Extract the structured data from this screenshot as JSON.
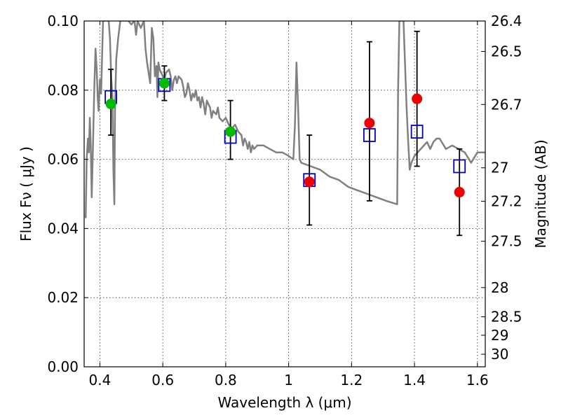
{
  "chart_data": {
    "type": "scatter",
    "xlabel": "Wavelength  λ (μm)",
    "ylabel": "Flux  Fν  ( μJy )",
    "y2label": "Magnitude (AB)",
    "xlim": [
      0.35,
      1.625
    ],
    "ylim": [
      0.0,
      0.1
    ],
    "grid": true,
    "x_ticks": [
      {
        "value": 0.4,
        "label": "0.4"
      },
      {
        "value": 0.6,
        "label": "0.6"
      },
      {
        "value": 0.8,
        "label": "0.8"
      },
      {
        "value": 1.0,
        "label": "1"
      },
      {
        "value": 1.2,
        "label": "1.2"
      },
      {
        "value": 1.4,
        "label": "1.4"
      },
      {
        "value": 1.6,
        "label": "1.6"
      }
    ],
    "y_ticks": [
      {
        "value": 0.0,
        "label": "0.00"
      },
      {
        "value": 0.02,
        "label": "0.02"
      },
      {
        "value": 0.04,
        "label": "0.04"
      },
      {
        "value": 0.06,
        "label": "0.06"
      },
      {
        "value": 0.08,
        "label": "0.08"
      },
      {
        "value": 0.1,
        "label": "0.10"
      }
    ],
    "y2_ticks": [
      {
        "value": 26.4,
        "label": "26.4"
      },
      {
        "value": 26.5,
        "label": "26.5"
      },
      {
        "value": 26.7,
        "label": "26.7"
      },
      {
        "value": 27.0,
        "label": "27"
      },
      {
        "value": 27.2,
        "label": "27.2"
      },
      {
        "value": 27.5,
        "label": "27.5"
      },
      {
        "value": 28.0,
        "label": "28"
      },
      {
        "value": 28.5,
        "label": "28.5"
      },
      {
        "value": 29.0,
        "label": "29"
      },
      {
        "value": 30.0,
        "label": "30"
      }
    ],
    "series": [
      {
        "kind": "line",
        "color": "#808080",
        "points": [
          [
            0.355,
            0.043
          ],
          [
            0.358,
            0.06
          ],
          [
            0.362,
            0.066
          ],
          [
            0.365,
            0.062
          ],
          [
            0.368,
            0.072
          ],
          [
            0.371,
            0.064
          ],
          [
            0.374,
            0.049
          ],
          [
            0.378,
            0.064
          ],
          [
            0.382,
            0.08
          ],
          [
            0.386,
            0.092
          ],
          [
            0.39,
            0.086
          ],
          [
            0.393,
            0.078
          ],
          [
            0.396,
            0.074
          ],
          [
            0.4,
            0.083
          ],
          [
            0.404,
            0.079
          ],
          [
            0.41,
            0.1
          ],
          [
            0.415,
            0.1001
          ],
          [
            0.425,
            0.1001
          ],
          [
            0.428,
            0.1
          ],
          [
            0.432,
            0.095
          ],
          [
            0.436,
            0.084
          ],
          [
            0.44,
            0.078
          ],
          [
            0.443,
            0.057
          ],
          [
            0.446,
            0.047
          ],
          [
            0.448,
            0.075
          ],
          [
            0.452,
            0.089
          ],
          [
            0.458,
            0.095
          ],
          [
            0.465,
            0.1001
          ],
          [
            0.49,
            0.1001
          ],
          [
            0.5,
            0.099
          ],
          [
            0.51,
            0.1001
          ],
          [
            0.515,
            0.096
          ],
          [
            0.52,
            0.1
          ],
          [
            0.53,
            0.098
          ],
          [
            0.54,
            0.1001
          ],
          [
            0.545,
            0.092
          ],
          [
            0.55,
            0.088
          ],
          [
            0.56,
            0.082
          ],
          [
            0.565,
            0.098
          ],
          [
            0.57,
            0.095
          ],
          [
            0.575,
            0.084
          ],
          [
            0.58,
            0.087
          ],
          [
            0.583,
            0.078
          ],
          [
            0.586,
            0.088
          ],
          [
            0.59,
            0.086
          ],
          [
            0.6,
            0.084
          ],
          [
            0.605,
            0.083
          ],
          [
            0.61,
            0.085
          ],
          [
            0.62,
            0.086
          ],
          [
            0.625,
            0.084
          ],
          [
            0.63,
            0.08
          ],
          [
            0.635,
            0.083
          ],
          [
            0.64,
            0.084
          ],
          [
            0.645,
            0.082
          ],
          [
            0.65,
            0.084
          ],
          [
            0.66,
            0.083
          ],
          [
            0.665,
            0.081
          ],
          [
            0.67,
            0.078
          ],
          [
            0.675,
            0.079
          ],
          [
            0.68,
            0.082
          ],
          [
            0.685,
            0.08
          ],
          [
            0.69,
            0.077
          ],
          [
            0.695,
            0.079
          ],
          [
            0.7,
            0.078
          ],
          [
            0.705,
            0.08
          ],
          [
            0.71,
            0.077
          ],
          [
            0.715,
            0.078
          ],
          [
            0.72,
            0.075
          ],
          [
            0.725,
            0.078
          ],
          [
            0.73,
            0.076
          ],
          [
            0.735,
            0.073
          ],
          [
            0.74,
            0.077
          ],
          [
            0.745,
            0.076
          ],
          [
            0.75,
            0.075
          ],
          [
            0.755,
            0.072
          ],
          [
            0.76,
            0.074
          ],
          [
            0.77,
            0.073
          ],
          [
            0.775,
            0.075
          ],
          [
            0.78,
            0.072
          ],
          [
            0.79,
            0.071
          ],
          [
            0.8,
            0.072
          ],
          [
            0.81,
            0.07
          ],
          [
            0.82,
            0.069
          ],
          [
            0.83,
            0.07
          ],
          [
            0.84,
            0.068
          ],
          [
            0.85,
            0.067
          ],
          [
            0.855,
            0.064
          ],
          [
            0.86,
            0.066
          ],
          [
            0.865,
            0.065
          ],
          [
            0.87,
            0.063
          ],
          [
            0.875,
            0.065
          ],
          [
            0.88,
            0.062
          ],
          [
            0.885,
            0.064
          ],
          [
            0.89,
            0.063
          ],
          [
            0.9,
            0.064
          ],
          [
            0.92,
            0.064
          ],
          [
            0.94,
            0.063
          ],
          [
            0.96,
            0.062
          ],
          [
            0.98,
            0.062
          ],
          [
            1.0,
            0.061
          ],
          [
            1.015,
            0.06
          ],
          [
            1.02,
            0.07
          ],
          [
            1.025,
            0.088
          ],
          [
            1.03,
            0.075
          ],
          [
            1.035,
            0.06
          ],
          [
            1.04,
            0.059
          ],
          [
            1.07,
            0.058
          ],
          [
            1.1,
            0.057
          ],
          [
            1.13,
            0.055
          ],
          [
            1.16,
            0.054
          ],
          [
            1.19,
            0.052
          ],
          [
            1.22,
            0.051
          ],
          [
            1.25,
            0.05
          ],
          [
            1.28,
            0.049
          ],
          [
            1.31,
            0.048
          ],
          [
            1.345,
            0.047
          ],
          [
            1.348,
            0.08
          ],
          [
            1.352,
            0.1
          ],
          [
            1.355,
            0.1001
          ],
          [
            1.365,
            0.1001
          ],
          [
            1.375,
            0.075
          ],
          [
            1.38,
            0.065
          ],
          [
            1.385,
            0.057
          ],
          [
            1.39,
            0.059
          ],
          [
            1.4,
            0.061
          ],
          [
            1.42,
            0.063
          ],
          [
            1.44,
            0.065
          ],
          [
            1.45,
            0.063
          ],
          [
            1.46,
            0.065
          ],
          [
            1.47,
            0.066
          ],
          [
            1.48,
            0.066
          ],
          [
            1.5,
            0.063
          ],
          [
            1.52,
            0.064
          ],
          [
            1.54,
            0.063
          ],
          [
            1.56,
            0.062
          ],
          [
            1.58,
            0.059
          ],
          [
            1.6,
            0.062
          ],
          [
            1.625,
            0.062
          ]
        ]
      },
      {
        "kind": "errorbars",
        "color": "#000000",
        "points": [
          {
            "x": 0.435,
            "lo": 0.067,
            "hi": 0.086
          },
          {
            "x": 0.605,
            "lo": 0.077,
            "hi": 0.087
          },
          {
            "x": 0.815,
            "lo": 0.06,
            "hi": 0.077
          },
          {
            "x": 1.066,
            "lo": 0.041,
            "hi": 0.067
          },
          {
            "x": 1.257,
            "lo": 0.048,
            "hi": 0.094
          },
          {
            "x": 1.408,
            "lo": 0.058,
            "hi": 0.097
          },
          {
            "x": 1.543,
            "lo": 0.038,
            "hi": 0.063
          }
        ]
      },
      {
        "kind": "open-squares",
        "color": "#0000cc",
        "points": [
          [
            0.435,
            0.078
          ],
          [
            0.605,
            0.0815
          ],
          [
            0.815,
            0.0665
          ],
          [
            1.066,
            0.054
          ],
          [
            1.257,
            0.067
          ],
          [
            1.408,
            0.068
          ],
          [
            1.543,
            0.058
          ]
        ]
      },
      {
        "kind": "filled-circles",
        "color": "#00bb00",
        "points": [
          [
            0.435,
            0.076
          ],
          [
            0.605,
            0.082
          ],
          [
            0.815,
            0.068
          ]
        ]
      },
      {
        "kind": "filled-circles",
        "color": "#ee0000",
        "points": [
          [
            1.066,
            0.0535
          ],
          [
            1.257,
            0.0705
          ],
          [
            1.408,
            0.0775
          ],
          [
            1.543,
            0.0505
          ]
        ]
      }
    ]
  }
}
